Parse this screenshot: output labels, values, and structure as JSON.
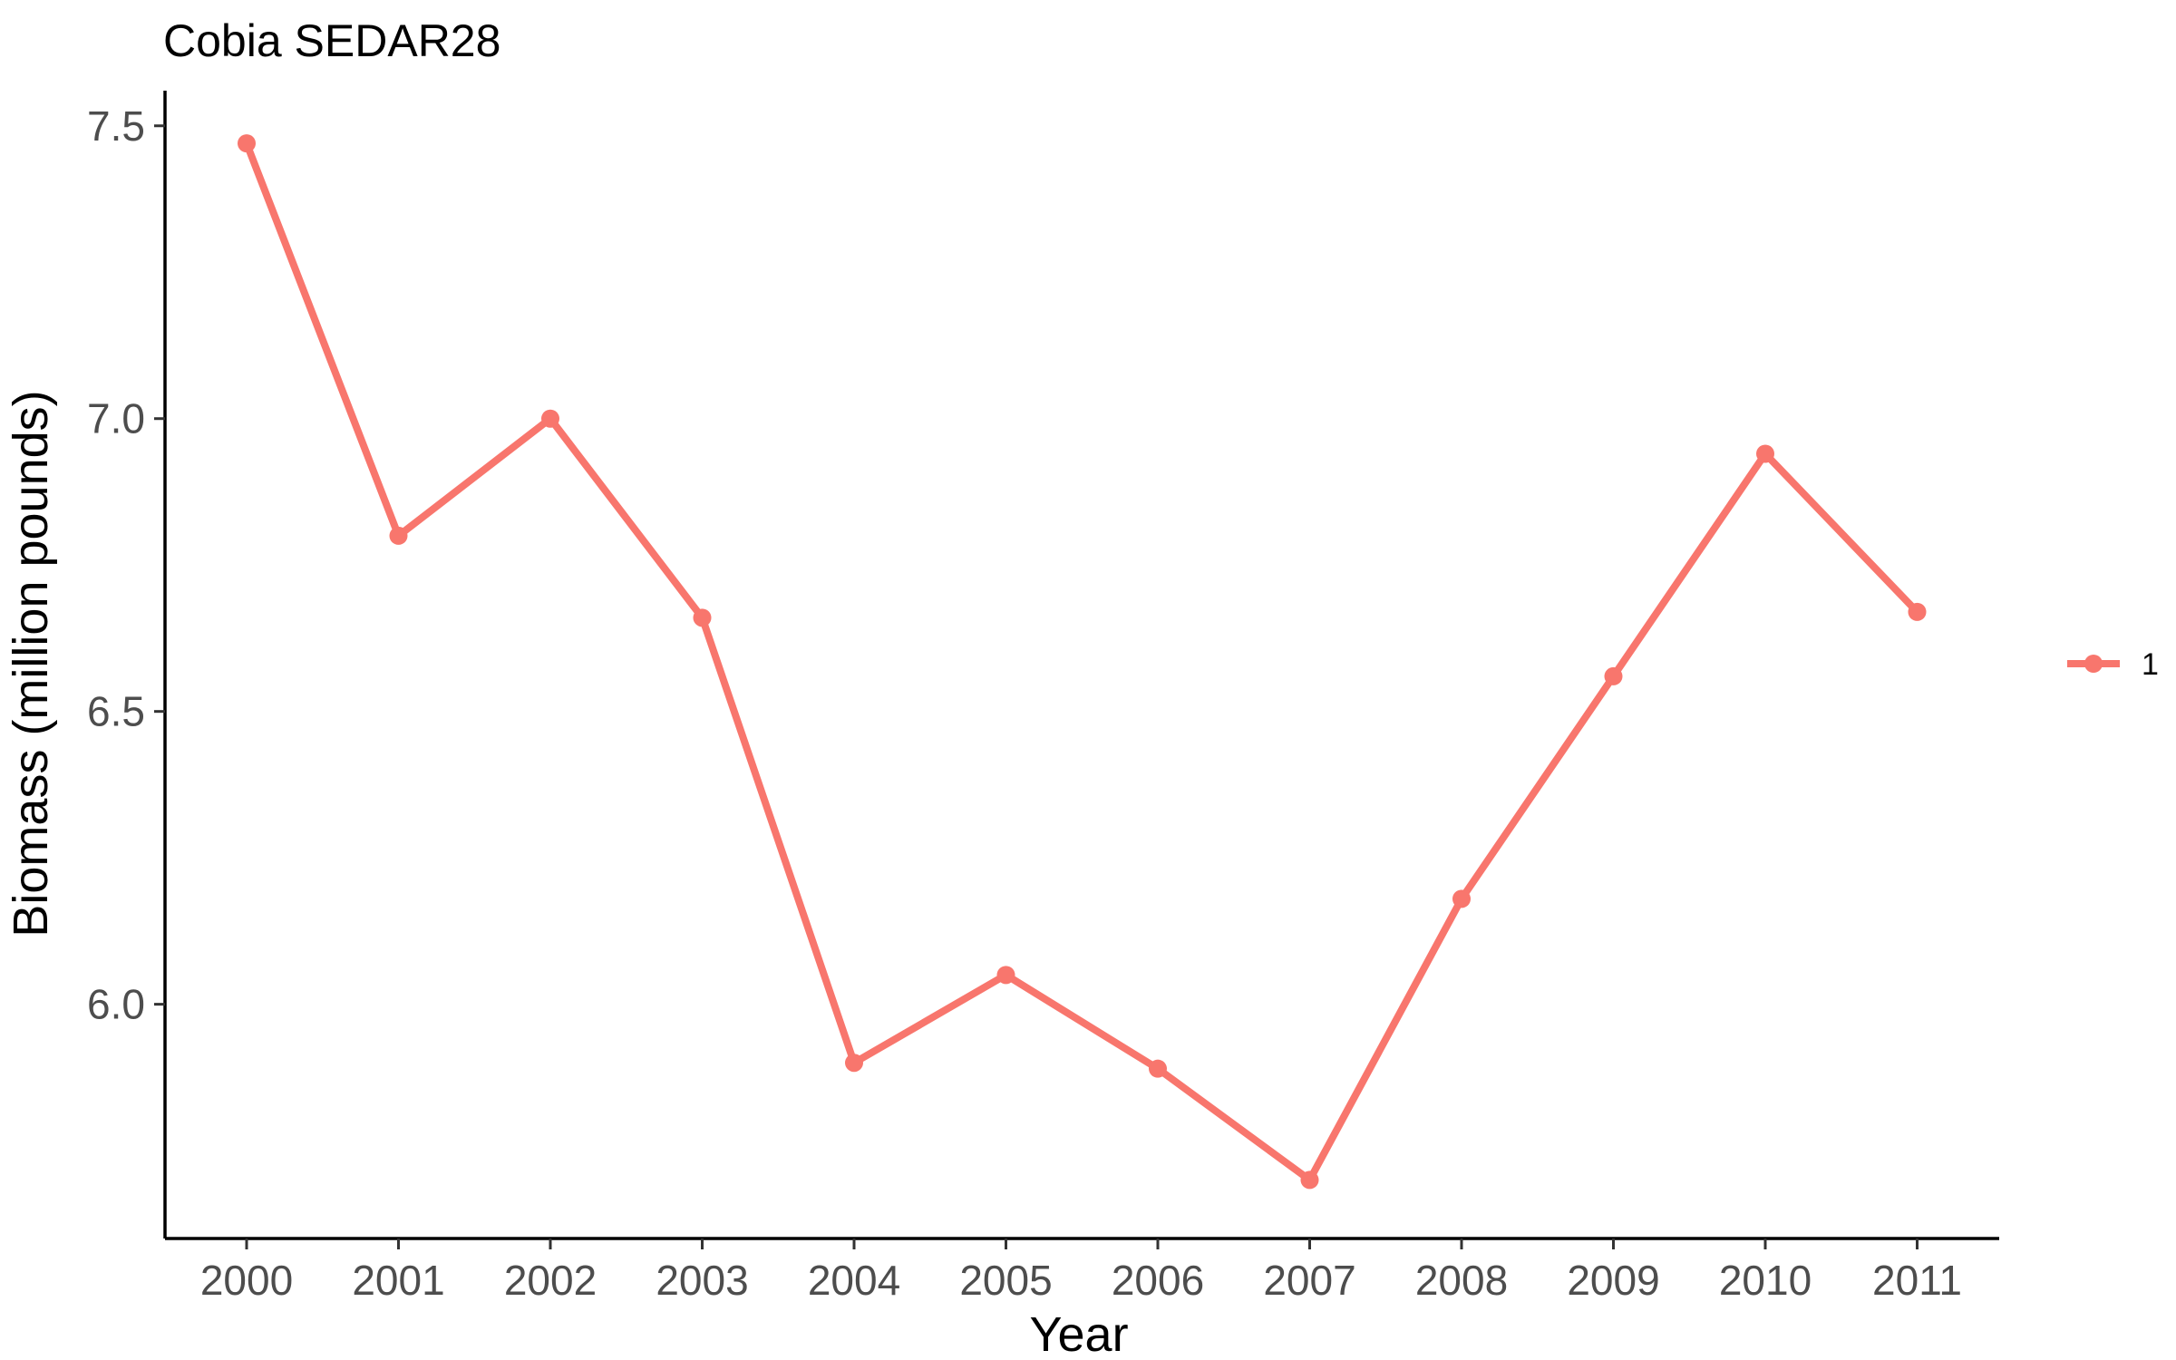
{
  "chart_data": {
    "type": "line",
    "title": "Cobia SEDAR28",
    "xlabel": "Year",
    "ylabel": "Biomass (million pounds)",
    "categories": [
      "2000",
      "2001",
      "2002",
      "2003",
      "2004",
      "2005",
      "2006",
      "2007",
      "2008",
      "2009",
      "2010",
      "2011"
    ],
    "y_ticks": [
      "6.0",
      "6.5",
      "7.0",
      "7.5"
    ],
    "ylim": [
      5.6,
      7.56
    ],
    "grid": false,
    "legend_position": "right",
    "series": [
      {
        "name": "1",
        "color": "#F8766D",
        "values": [
          7.47,
          6.8,
          7.0,
          6.66,
          5.9,
          6.05,
          5.89,
          5.7,
          6.18,
          6.56,
          6.94,
          6.67
        ]
      }
    ]
  }
}
